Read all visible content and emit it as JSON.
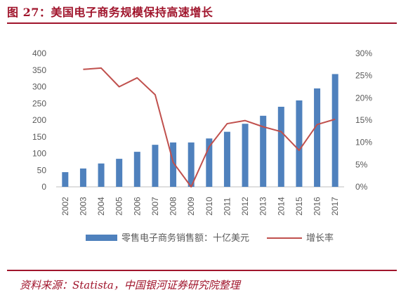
{
  "title": "图 27：美国电子商务规模保持高速增长",
  "source": "资料来源：Statista，中国银河证券研究院整理",
  "colors": {
    "accent": "#a0152c",
    "bar": "#4f81bd",
    "line": "#c0504d",
    "axis_text": "#595959"
  },
  "chart_data": {
    "type": "bar",
    "categories": [
      "2002",
      "2003",
      "2004",
      "2005",
      "2006",
      "2007",
      "2008",
      "2009",
      "2010",
      "2011",
      "2012",
      "2013",
      "2014",
      "2015",
      "2016",
      "2017"
    ],
    "series": [
      {
        "name": "零售电子商务销售额：十亿美元",
        "type": "bar",
        "axis": "left",
        "values": [
          44,
          55,
          70,
          84,
          105,
          126,
          133,
          133,
          145,
          165,
          189,
          213,
          240,
          259,
          295,
          338
        ]
      },
      {
        "name": "增长率",
        "type": "line",
        "axis": "right",
        "values": [
          null,
          0.264,
          0.267,
          0.225,
          0.245,
          0.207,
          0.055,
          0.0,
          0.09,
          0.142,
          0.149,
          0.135,
          0.124,
          0.082,
          0.14,
          0.152
        ]
      }
    ],
    "left_axis": {
      "ylim": [
        0,
        400
      ],
      "ticks": [
        "0",
        "50",
        "100",
        "150",
        "200",
        "250",
        "300",
        "350",
        "400"
      ]
    },
    "right_axis": {
      "ylim": [
        0,
        0.3
      ],
      "ticks": [
        "0%",
        "5%",
        "10%",
        "15%",
        "20%",
        "25%",
        "30%"
      ]
    },
    "grid": false,
    "legend_position": "bottom"
  }
}
